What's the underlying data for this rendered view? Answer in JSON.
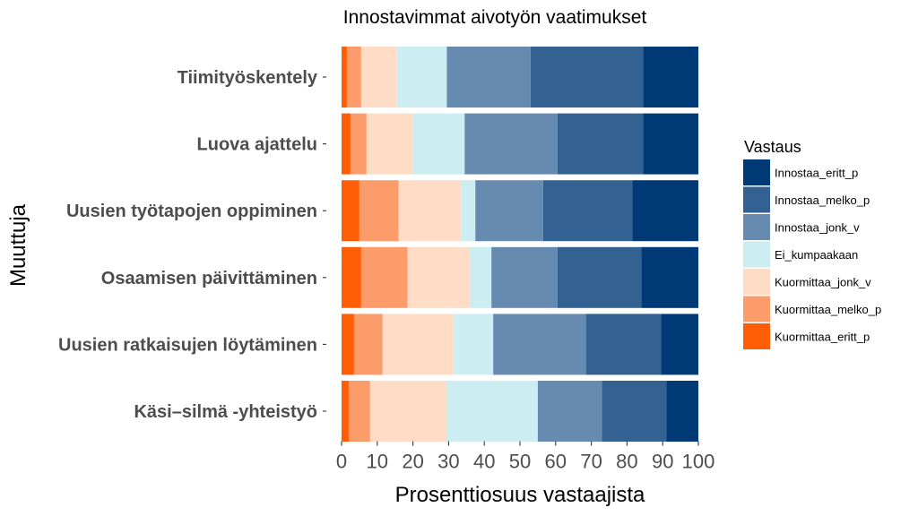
{
  "chart_data": {
    "type": "bar",
    "orientation": "horizontal",
    "stacked": true,
    "title": "Innostavimmat aivotyön vaatimukset",
    "xlabel": "Prosenttiosuus vastaajista",
    "ylabel": "Muuttuja",
    "xlim": [
      0,
      100
    ],
    "xticks": [
      "0",
      "10",
      "20",
      "30",
      "40",
      "50",
      "60",
      "70",
      "80",
      "90",
      "100"
    ],
    "grid": false,
    "legend": {
      "title": "Vastaus",
      "position": "right"
    },
    "categories": [
      "Tiimityöskentely",
      "Luova ajattelu",
      "Uusien työtapojen oppiminen",
      "Osaamisen päivittäminen",
      "Uusien ratkaisujen löytäminen",
      "Käsi–silmä -yhteistyö"
    ],
    "series": [
      {
        "name": "Kuormittaa_eritt_p",
        "color": "#ff5e06",
        "values": [
          1.5,
          2.5,
          5.0,
          5.5,
          3.5,
          2.0
        ]
      },
      {
        "name": "Kuormittaa_melko_p",
        "color": "#fc9c6a",
        "values": [
          4.0,
          4.5,
          11.0,
          13.0,
          8.0,
          6.0
        ]
      },
      {
        "name": "Kuormittaa_jonk_v",
        "color": "#fedcc6",
        "values": [
          10.0,
          13.0,
          17.5,
          17.5,
          20.0,
          21.5
        ]
      },
      {
        "name": "Ei_kumpaakaan",
        "color": "#ccedf2",
        "values": [
          14.0,
          14.5,
          4.0,
          6.0,
          11.0,
          25.5
        ]
      },
      {
        "name": "Innostaa_jonk_v",
        "color": "#678bb0",
        "values": [
          23.5,
          26.0,
          19.0,
          18.5,
          26.0,
          18.0
        ]
      },
      {
        "name": "Innostaa_melko_p",
        "color": "#336191",
        "values": [
          31.5,
          24.0,
          25.0,
          23.5,
          21.0,
          18.0
        ]
      },
      {
        "name": "Innostaa_eritt_p",
        "color": "#003a76",
        "values": [
          15.5,
          15.5,
          18.5,
          16.0,
          10.5,
          9.0
        ]
      }
    ],
    "legend_order": [
      "Innostaa_eritt_p",
      "Innostaa_melko_p",
      "Innostaa_jonk_v",
      "Ei_kumpaakaan",
      "Kuormittaa_jonk_v",
      "Kuormittaa_melko_p",
      "Kuormittaa_eritt_p"
    ]
  }
}
